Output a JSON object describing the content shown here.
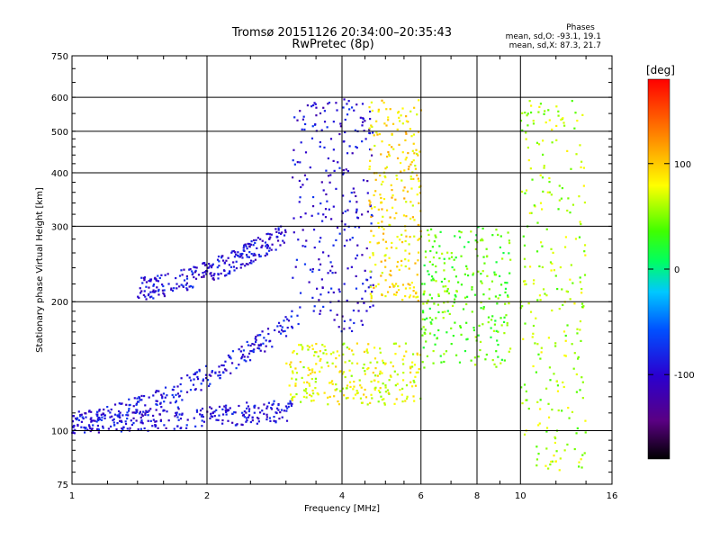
{
  "header": {
    "title_line1": "Tromsø 20151126 20:34:00–20:35:43",
    "title_line2": "RwPretec (8p)"
  },
  "stats": {
    "heading": "Phases",
    "line_o": "mean, sd,O: -93.1, 19.1",
    "line_x": "mean, sd,X:  87.3, 21.7"
  },
  "colorbar": {
    "label": "[deg]",
    "ticks": [
      "100",
      "0",
      "-100"
    ],
    "tick_values": [
      100,
      0,
      -100
    ],
    "range": [
      -180,
      180
    ],
    "colormap": "rainbow (black→purple→blue→cyan→green→yellow→orange→red)"
  },
  "chart_data": {
    "type": "scatter",
    "title": "Tromsø 20151126 20:34:00–20:35:43",
    "subtitle": "RwPretec (8p)",
    "xlabel": "Frequency [MHz]",
    "ylabel": "Stationary phase Virtual Height [km]",
    "xscale": "log",
    "yscale": "log",
    "xlim": [
      1,
      16
    ],
    "ylim": [
      75,
      750
    ],
    "xticks": [
      1,
      2,
      4,
      6,
      8,
      10,
      16
    ],
    "yticks": [
      75,
      100,
      200,
      300,
      400,
      500,
      600,
      750
    ],
    "grid": true,
    "color_quantity": "phase [deg]",
    "traces": [
      {
        "band": "O-mode E/F1 lower trace",
        "x_range": [
          1.0,
          3.1
        ],
        "h_start": 105,
        "h_end": 112,
        "phase": -95
      },
      {
        "band": "O-mode F1 rising trace",
        "x_range": [
          1.0,
          3.2
        ],
        "h_start": 105,
        "h_end": 185,
        "phase": -90
      },
      {
        "band": "O-mode F2 trace",
        "x_range": [
          1.4,
          3.0
        ],
        "h_start": 215,
        "h_end": 290,
        "phase": -95
      },
      {
        "band": "O-mode dense F2 column",
        "x_range": [
          3.1,
          4.7
        ],
        "h_range": [
          170,
          600
        ],
        "phase": -95
      },
      {
        "band": "X-mode lower trace",
        "x_range": [
          3.0,
          6.0
        ],
        "h_range": [
          115,
          160
        ],
        "phase": 75
      },
      {
        "band": "X-mode F2 column",
        "x_range": [
          4.6,
          6.0
        ],
        "h_range": [
          200,
          600
        ],
        "phase": 90
      },
      {
        "band": "Scatter near 6–9 MHz",
        "x_range": [
          6.0,
          9.5
        ],
        "h_range": [
          140,
          300
        ],
        "phase": 40
      },
      {
        "band": "Sporadic echoes 10–14 MHz",
        "x_range": [
          10.0,
          14.0
        ],
        "h_range": [
          80,
          600
        ],
        "phase": 60
      }
    ]
  }
}
